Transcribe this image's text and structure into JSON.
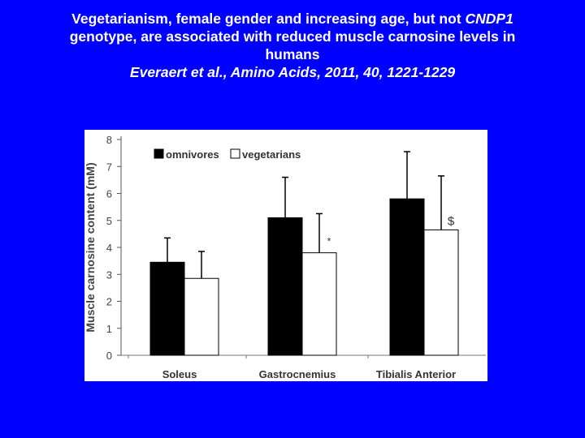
{
  "title": {
    "line1_prefix": "Vegetarianism, female gender and increasing age, but not ",
    "line1_gene": "CNDP1",
    "line2": "genotype, are associated with reduced muscle carnosine levels in",
    "line3": "humans",
    "citation": "Everaert et al., Amino Acids, 2011, 40, 1221-1229"
  },
  "colors": {
    "background": "#0000ff",
    "omnivores": "#000000",
    "vegetarians": "#ffffff"
  },
  "chart_data": {
    "type": "bar",
    "title": "",
    "xlabel": "",
    "ylabel": "Muscle carnosine content (mM)",
    "ylim": [
      0,
      8
    ],
    "yticks": [
      "0",
      "1",
      "2",
      "3",
      "4",
      "5",
      "6",
      "7",
      "8"
    ],
    "categories": [
      "Soleus",
      "Gastrocnemius",
      "Tibialis Anterior"
    ],
    "series": [
      {
        "name": "omnivores",
        "values": [
          3.45,
          5.1,
          5.8
        ],
        "errors": [
          0.9,
          1.5,
          1.75
        ]
      },
      {
        "name": "vegetarians",
        "values": [
          2.85,
          3.8,
          4.65
        ],
        "errors": [
          1.0,
          1.45,
          2.0
        ]
      }
    ],
    "annotations": [
      "",
      "*",
      "$"
    ],
    "legend": [
      "omnivores",
      "vegetarians"
    ],
    "legend_position": "top-left"
  }
}
